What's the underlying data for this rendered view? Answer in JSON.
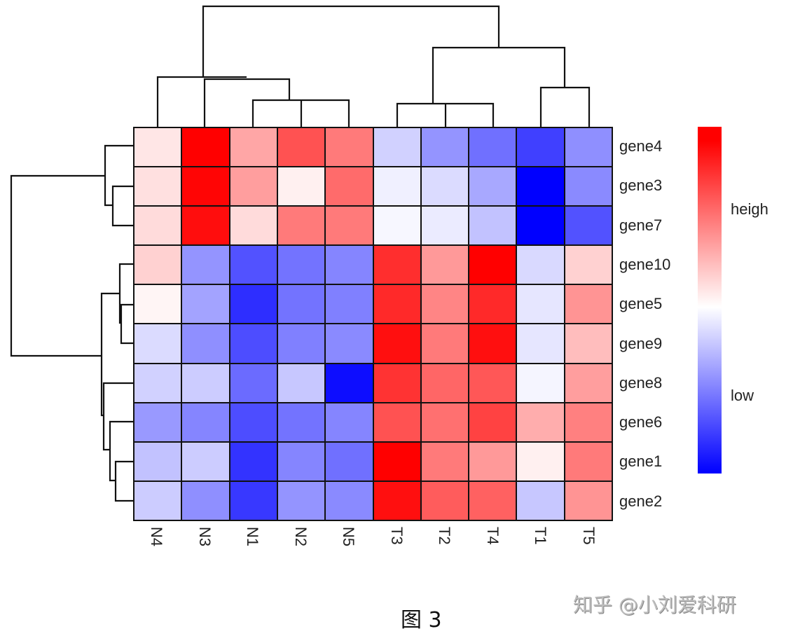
{
  "chart_data": {
    "type": "heatmap",
    "title": "",
    "caption": "图 3",
    "watermark": "知乎 @小刘爱科研",
    "rows": [
      "gene4",
      "gene3",
      "gene7",
      "gene10",
      "gene5",
      "gene9",
      "gene8",
      "gene6",
      "gene1",
      "gene2"
    ],
    "columns": [
      "N4",
      "N3",
      "N1",
      "N2",
      "N5",
      "T3",
      "T2",
      "T4",
      "T1",
      "T5"
    ],
    "value_scale": "relative expression, -1 (low, blue) to 1 (high, red), estimated from colors",
    "values": [
      [
        0.1,
        1.0,
        0.35,
        0.68,
        0.52,
        -0.18,
        -0.42,
        -0.56,
        -0.75,
        -0.44
      ],
      [
        0.12,
        0.98,
        0.38,
        0.06,
        0.58,
        -0.06,
        -0.14,
        -0.34,
        -1.0,
        -0.46
      ],
      [
        0.14,
        0.95,
        0.14,
        0.52,
        0.52,
        -0.03,
        -0.08,
        -0.24,
        -1.0,
        -0.68
      ],
      [
        0.18,
        -0.42,
        -0.68,
        -0.55,
        -0.48,
        0.82,
        0.4,
        1.0,
        -0.15,
        0.18
      ],
      [
        0.04,
        -0.36,
        -0.82,
        -0.55,
        -0.5,
        0.84,
        0.48,
        0.84,
        -0.1,
        0.42
      ],
      [
        -0.14,
        -0.44,
        -0.7,
        -0.5,
        -0.46,
        0.94,
        0.52,
        0.94,
        -0.1,
        0.26
      ],
      [
        -0.18,
        -0.2,
        -0.58,
        -0.22,
        -0.95,
        0.8,
        0.6,
        0.66,
        -0.04,
        0.38
      ],
      [
        -0.4,
        -0.48,
        -0.7,
        -0.55,
        -0.48,
        0.68,
        0.56,
        0.74,
        0.32,
        0.5
      ],
      [
        -0.24,
        -0.2,
        -0.8,
        -0.48,
        -0.56,
        1.0,
        0.52,
        0.4,
        0.06,
        0.52
      ],
      [
        -0.2,
        -0.44,
        -0.78,
        -0.42,
        -0.46,
        0.94,
        0.64,
        0.62,
        -0.22,
        0.42
      ]
    ],
    "colormap": {
      "low": "#0000ff",
      "mid": "#ffffff",
      "high": "#ff0000"
    },
    "legend": {
      "labels": [
        "heigh",
        "low"
      ],
      "position": "right"
    },
    "row_dendrogram": "((gene4,(gene3,gene7)),((gene10,(gene5,gene9)),(gene8,(gene6,(gene1,gene2)))))",
    "column_dendrogram": "((N4,(N3,(N1,(N2,N5)))),((T3,(T2,T4)),(T1,T5)))",
    "xlabel": "",
    "ylabel": "",
    "grid": true
  }
}
